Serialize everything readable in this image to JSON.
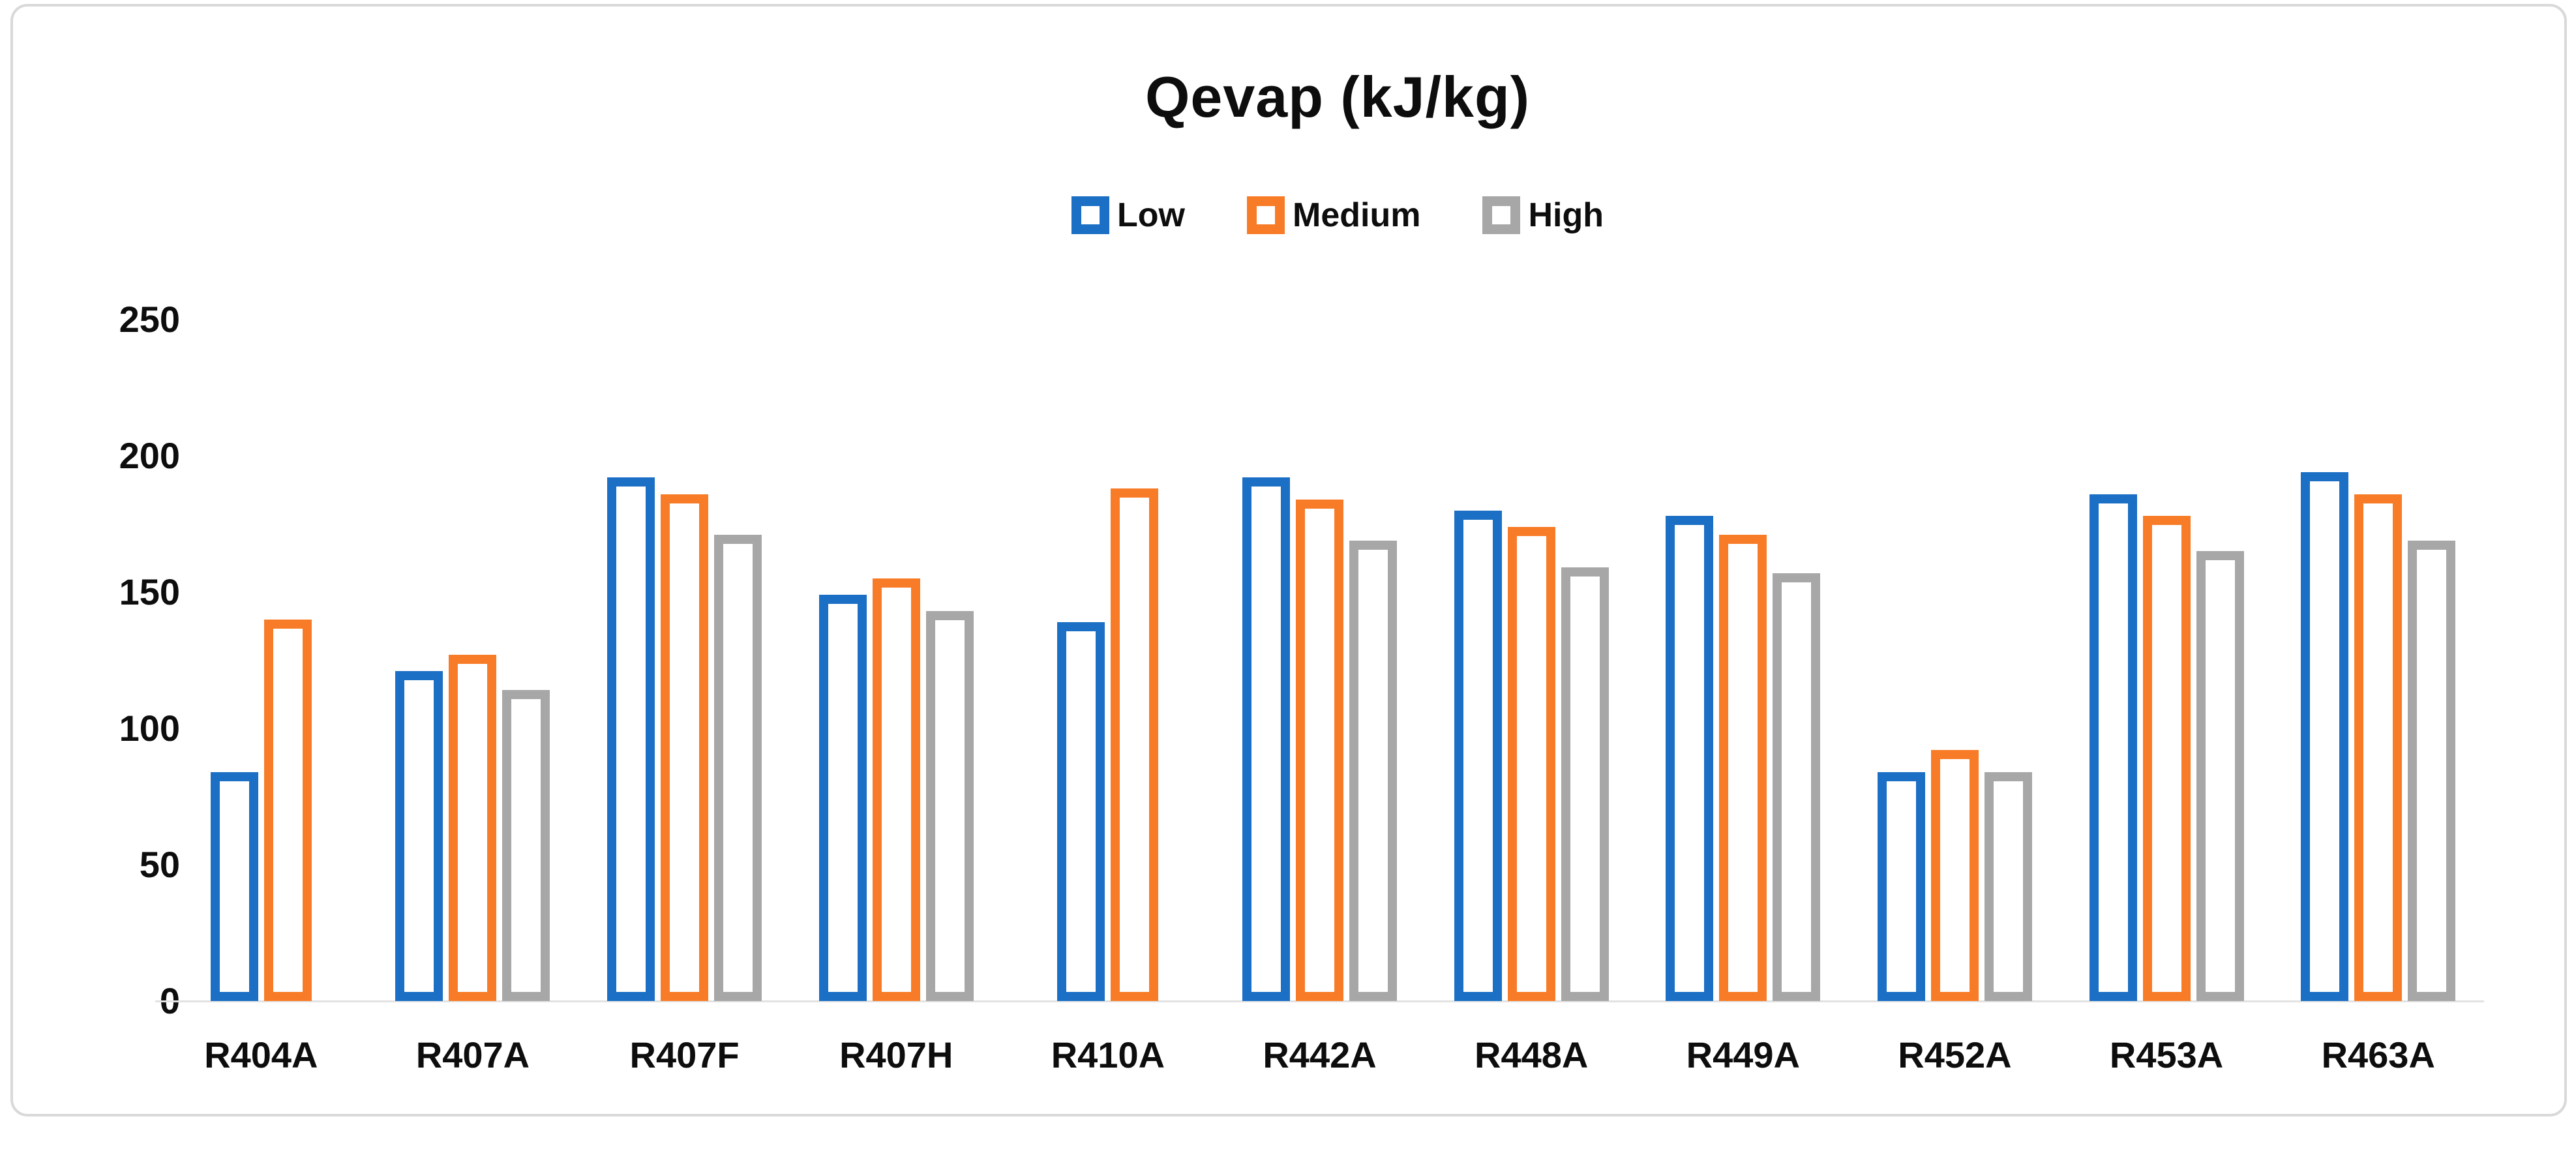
{
  "chart_data": {
    "type": "bar",
    "title": "Qevap (kJ/kg)",
    "categories": [
      "R404A",
      "R407A",
      "R407F",
      "R407H",
      "R410A",
      "R442A",
      "R448A",
      "R449A",
      "R452A",
      "R453A",
      "R463A"
    ],
    "series": [
      {
        "name": "Low",
        "color": "#1B6FC4",
        "values": [
          84,
          121,
          192,
          149,
          139,
          192,
          180,
          178,
          84,
          186,
          194
        ]
      },
      {
        "name": "Medium",
        "color": "#F87C28",
        "values": [
          140,
          127,
          186,
          155,
          188,
          184,
          174,
          171,
          92,
          178,
          186
        ]
      },
      {
        "name": "High",
        "color": "#A7A7A7",
        "values": [
          null,
          114,
          171,
          143,
          null,
          169,
          159,
          157,
          84,
          165,
          169
        ]
      }
    ],
    "ylim": [
      0,
      250
    ],
    "yticks": [
      0,
      50,
      100,
      150,
      200,
      250
    ],
    "grid": false,
    "legend_position": "top-center",
    "bar_style": "hollow-outline",
    "bar_fill": "#FFFFFF",
    "frame_color": "#D9D9D9",
    "text_color": "#0D0D0D"
  },
  "layout_note": "clustered column chart, hollow outlined bars, no gridlines"
}
